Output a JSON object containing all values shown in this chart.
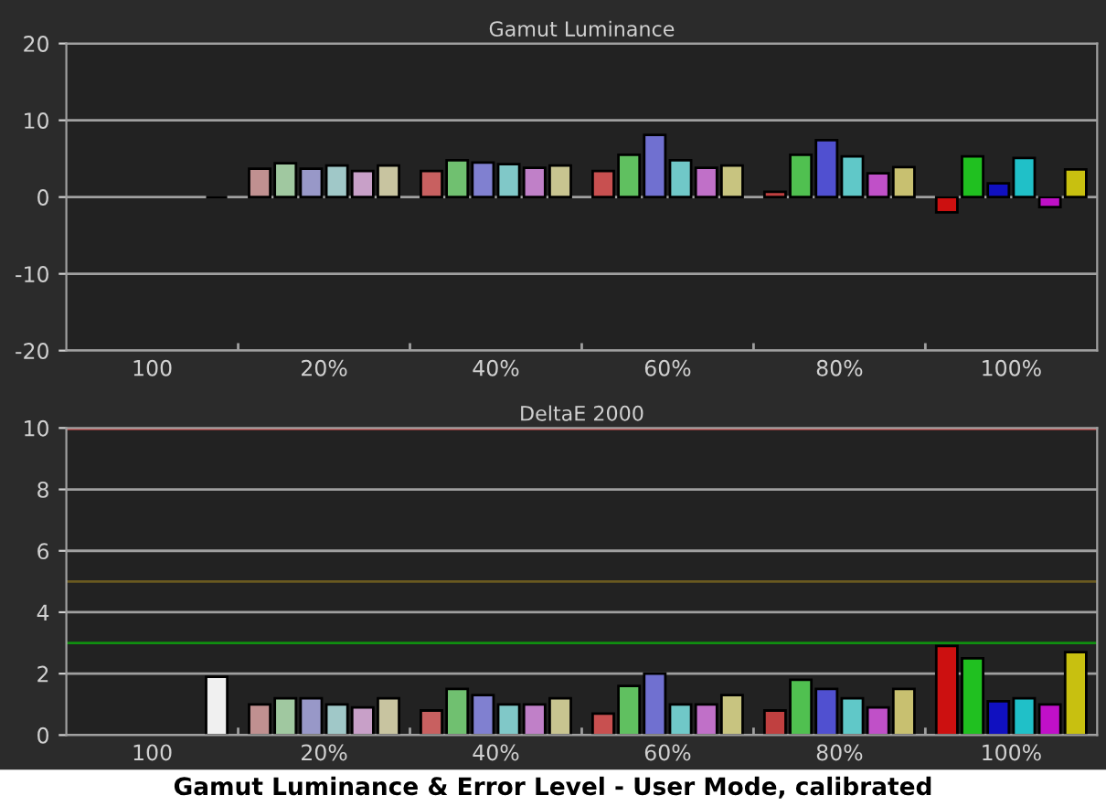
{
  "chart_data": [
    {
      "type": "bar",
      "title": "Gamut Luminance",
      "categories": [
        "100",
        "20%",
        "40%",
        "60%",
        "80%",
        "100%"
      ],
      "series": [
        {
          "colors": [
            null,
            "#c09090",
            "#c86060",
            "#c85050",
            "#c04040",
            "#cc1010"
          ],
          "values": [
            null,
            3.7,
            3.4,
            3.4,
            0.7,
            -2.0
          ]
        },
        {
          "colors": [
            null,
            "#a0c8a0",
            "#70c070",
            "#60c060",
            "#50c050",
            "#20c020"
          ],
          "values": [
            null,
            4.4,
            4.8,
            5.5,
            5.5,
            5.3
          ]
        },
        {
          "colors": [
            null,
            "#9898c8",
            "#8080d0",
            "#7070d0",
            "#5050d0",
            "#1010c0"
          ],
          "values": [
            null,
            3.7,
            4.5,
            8.1,
            7.4,
            1.8
          ]
        },
        {
          "colors": [
            null,
            "#a0c8c8",
            "#80c8c8",
            "#70c8c8",
            "#60c8c8",
            "#20c0c8"
          ],
          "values": [
            null,
            4.1,
            4.3,
            4.8,
            5.3,
            5.1
          ]
        },
        {
          "colors": [
            null,
            "#c8a0c8",
            "#c080c8",
            "#c070c8",
            "#c050c8",
            "#c010c8"
          ],
          "values": [
            null,
            3.4,
            3.8,
            3.8,
            3.1,
            -1.3
          ]
        },
        {
          "colors": [
            "#000000",
            "#c8c4a0",
            "#c8c490",
            "#c8c480",
            "#c8c070",
            "#c8c010"
          ],
          "values": [
            0,
            4.1,
            4.1,
            4.1,
            3.9,
            3.6
          ]
        }
      ],
      "ylim": [
        -20,
        20
      ],
      "yticks": [
        -20,
        -10,
        0,
        10,
        20
      ],
      "grid": "y",
      "legend": false
    },
    {
      "type": "bar",
      "title": "DeltaE 2000",
      "categories": [
        "100",
        "20%",
        "40%",
        "60%",
        "80%",
        "100%"
      ],
      "series": [
        {
          "colors": [
            null,
            "#c09090",
            "#c86060",
            "#c85050",
            "#c04040",
            "#cc1010"
          ],
          "values": [
            null,
            1.0,
            0.8,
            0.7,
            0.8,
            2.9
          ]
        },
        {
          "colors": [
            null,
            "#a0c8a0",
            "#70c070",
            "#60c060",
            "#50c050",
            "#20c020"
          ],
          "values": [
            null,
            1.2,
            1.5,
            1.6,
            1.8,
            2.5
          ]
        },
        {
          "colors": [
            null,
            "#9898c8",
            "#8080d0",
            "#7070d0",
            "#5050d0",
            "#1010c0"
          ],
          "values": [
            null,
            1.2,
            1.3,
            2.0,
            1.5,
            1.1
          ]
        },
        {
          "colors": [
            null,
            "#a0c8c8",
            "#80c8c8",
            "#70c8c8",
            "#60c8c8",
            "#20c0c8"
          ],
          "values": [
            null,
            1.0,
            1.0,
            1.0,
            1.2,
            1.2
          ]
        },
        {
          "colors": [
            null,
            "#c8a0c8",
            "#c080c8",
            "#c070c8",
            "#c050c8",
            "#c010c8"
          ],
          "values": [
            null,
            0.9,
            1.0,
            1.0,
            0.9,
            1.0
          ]
        },
        {
          "colors": [
            "#f0f0f0",
            "#c8c4a0",
            "#c8c490",
            "#c8c480",
            "#c8c070",
            "#c8c010"
          ],
          "values": [
            1.9,
            1.2,
            1.2,
            1.3,
            1.5,
            2.7
          ]
        }
      ],
      "ylim": [
        0,
        10
      ],
      "yticks": [
        0,
        2,
        4,
        6,
        8,
        10
      ],
      "grid": "y",
      "legend": false,
      "ref_lines": [
        {
          "axis": "y",
          "value": 10,
          "color": "#e05050"
        },
        {
          "axis": "y",
          "value": 5,
          "color": "#6a5a20"
        },
        {
          "axis": "y",
          "value": 3,
          "color": "#109010"
        }
      ],
      "annotations": [
        "Gamut Luminance & Error Level - User Mode, calibrated"
      ]
    }
  ]
}
